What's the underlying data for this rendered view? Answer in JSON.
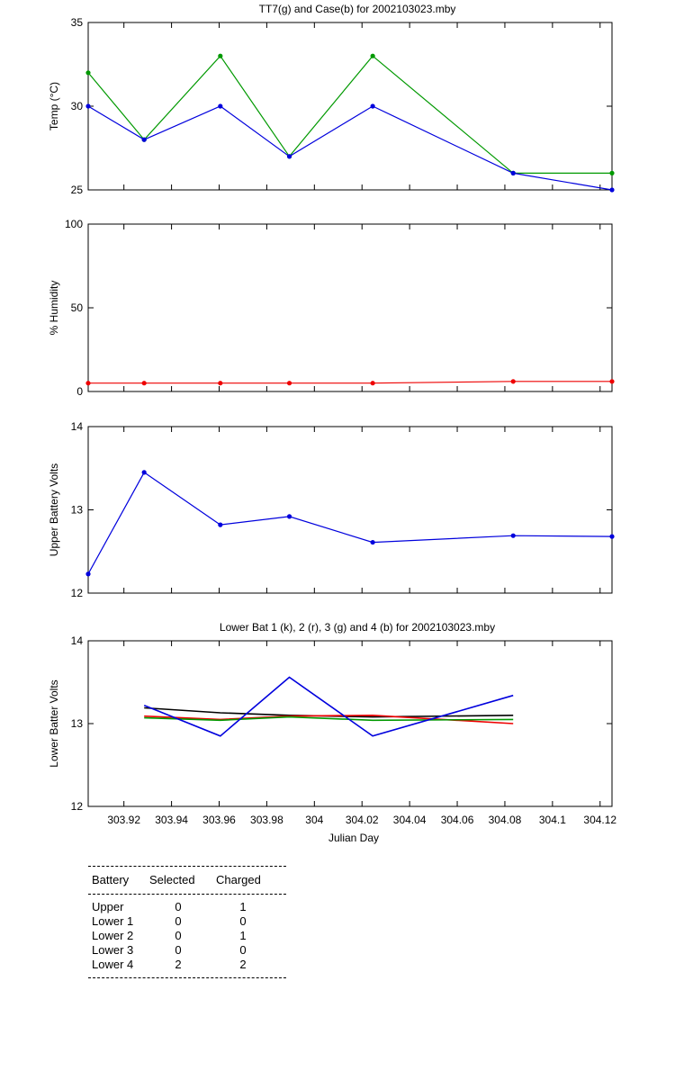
{
  "chart_data": [
    {
      "type": "line",
      "title": "TT7(g) and Case(b) for 2002103023.mby",
      "xlabel": "",
      "ylabel": "Temp  (°C)",
      "ylim": [
        25,
        35
      ],
      "yticks": [
        "25",
        "30",
        "35"
      ],
      "xlim": [
        303.905,
        304.125
      ],
      "series": [
        {
          "color": "#009900",
          "x": [
            303.905,
            303.9285,
            303.9605,
            303.9895,
            304.0245,
            304.0835,
            304.125
          ],
          "values": [
            32,
            28,
            33,
            27,
            33,
            26,
            26
          ]
        },
        {
          "color": "#0000dd",
          "x": [
            303.905,
            303.9285,
            303.9605,
            303.9895,
            304.0245,
            304.0835,
            304.125
          ],
          "values": [
            30,
            28,
            30,
            27,
            30,
            26,
            25
          ]
        }
      ]
    },
    {
      "type": "line",
      "title": "",
      "xlabel": "",
      "ylabel": "% Humidity",
      "ylim": [
        0,
        100
      ],
      "yticks": [
        "0",
        "50",
        "100"
      ],
      "xlim": [
        303.905,
        304.125
      ],
      "series": [
        {
          "color": "#ee0000",
          "x": [
            303.905,
            303.9285,
            303.9605,
            303.9895,
            304.0245,
            304.0835,
            304.125
          ],
          "values": [
            5,
            5,
            5,
            5,
            5,
            6,
            6
          ]
        }
      ]
    },
    {
      "type": "line",
      "title": "",
      "xlabel": "",
      "ylabel": "Upper Battery Volts",
      "ylim": [
        12,
        14
      ],
      "yticks": [
        "12",
        "13",
        "14"
      ],
      "xlim": [
        303.905,
        304.125
      ],
      "series": [
        {
          "color": "#0000dd",
          "x": [
            303.905,
            303.9285,
            303.9605,
            303.9895,
            304.0245,
            304.0835,
            304.125
          ],
          "values": [
            12.23,
            13.45,
            12.82,
            12.92,
            12.61,
            12.69,
            12.68
          ]
        }
      ]
    },
    {
      "type": "line",
      "title": "Lower Bat 1 (k), 2 (r), 3 (g) and 4 (b) for 2002103023.mby",
      "xlabel": "Julian Day",
      "ylabel": "Lower Batter Volts",
      "ylim": [
        12,
        14
      ],
      "yticks": [
        "12",
        "13",
        "14"
      ],
      "xlim": [
        303.905,
        304.125
      ],
      "xticks": [
        "303.92",
        "303.94",
        "303.96",
        "303.98",
        "304",
        "304.02",
        "304.04",
        "304.06",
        "304.08",
        "304.1",
        "304.12"
      ],
      "series": [
        {
          "color": "#000000",
          "x": [
            303.9285,
            303.9605,
            303.9895,
            304.0245,
            304.0835
          ],
          "values": [
            13.19,
            13.13,
            13.1,
            13.08,
            13.1
          ]
        },
        {
          "color": "#ee0000",
          "x": [
            303.9285,
            303.9605,
            303.9895,
            304.0245,
            304.0835
          ],
          "values": [
            13.09,
            13.05,
            13.09,
            13.1,
            13.0
          ]
        },
        {
          "color": "#009900",
          "x": [
            303.9285,
            303.9605,
            303.9895,
            304.0245,
            304.0835
          ],
          "values": [
            13.07,
            13.04,
            13.08,
            13.04,
            13.05
          ]
        },
        {
          "color": "#0000dd",
          "x": [
            303.9285,
            303.9605,
            303.9895,
            304.0245,
            304.0835
          ],
          "values": [
            13.22,
            12.85,
            13.56,
            12.85,
            13.34
          ]
        }
      ]
    }
  ],
  "battery_table": {
    "headers": {
      "battery": "Battery",
      "selected": "Selected",
      "charged": "Charged"
    },
    "rows": [
      {
        "battery": "Upper",
        "selected": "0",
        "charged": "1"
      },
      {
        "battery": "Lower 1",
        "selected": "0",
        "charged": "0"
      },
      {
        "battery": "Lower 2",
        "selected": "0",
        "charged": "1"
      },
      {
        "battery": "Lower 3",
        "selected": "0",
        "charged": "0"
      },
      {
        "battery": "Lower 4",
        "selected": "2",
        "charged": "2"
      }
    ]
  }
}
